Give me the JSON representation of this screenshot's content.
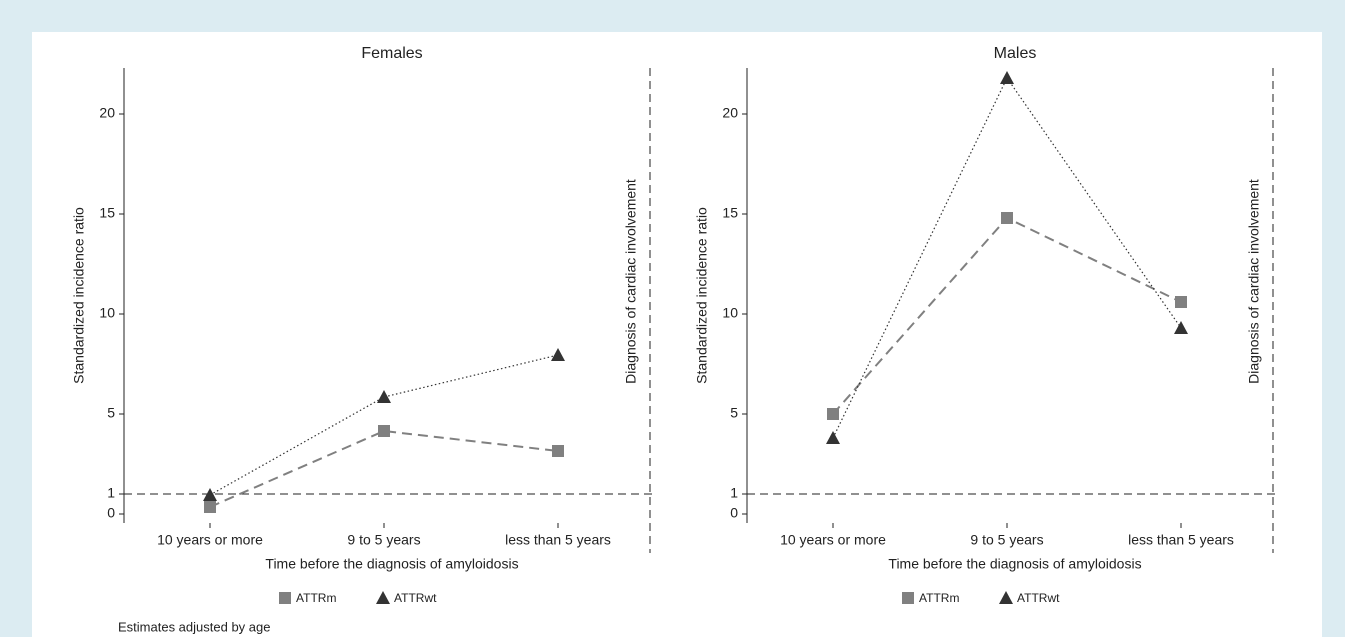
{
  "chart_data": [
    {
      "type": "line",
      "title": "Females",
      "xlabel": "Time before the diagnosis of amyloidosis",
      "ylabel": "Standardized incidence ratio",
      "annotation": "Diagnosis of cardiac involvement",
      "hline": 1,
      "categories": [
        "10 years or more",
        "9 to 5 years",
        "less than 5 years"
      ],
      "series": [
        {
          "name": "ATTRm",
          "color": "#808080",
          "marker": "square",
          "line_style": "dashed",
          "values": [
            0.35,
            4.15,
            3.15
          ]
        },
        {
          "name": "ATTRwt",
          "color": "#333333",
          "marker": "triangle",
          "line_style": "dotted",
          "values": [
            0.95,
            5.85,
            7.95
          ]
        }
      ],
      "ylim": [
        -0.45,
        22.3
      ],
      "yticks": [
        0,
        1,
        5,
        10,
        15,
        20
      ]
    },
    {
      "type": "line",
      "title": "Males",
      "xlabel": "Time before the diagnosis of amyloidosis",
      "ylabel": "Standardized incidence ratio",
      "annotation": "Diagnosis of cardiac involvement",
      "hline": 1,
      "categories": [
        "10 years or more",
        "9 to 5 years",
        "less than 5 years"
      ],
      "series": [
        {
          "name": "ATTRm",
          "color": "#808080",
          "marker": "square",
          "line_style": "dashed",
          "values": [
            5.0,
            14.8,
            10.6
          ]
        },
        {
          "name": "ATTRwt",
          "color": "#333333",
          "marker": "triangle",
          "line_style": "dotted",
          "values": [
            3.8,
            21.8,
            9.3
          ]
        }
      ],
      "ylim": [
        -0.45,
        22.3
      ],
      "yticks": [
        0,
        1,
        5,
        10,
        15,
        20
      ]
    }
  ],
  "footnote": "Estimates adjusted by age"
}
